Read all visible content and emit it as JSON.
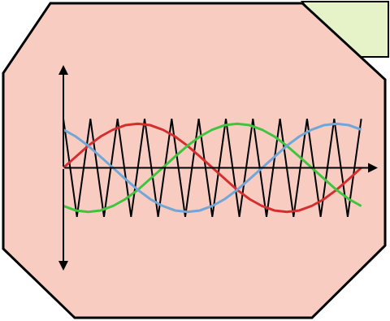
{
  "chart_data": {
    "type": "line",
    "xlim": [
      0,
      380
    ],
    "ylim": [
      -2.1,
      2.1
    ],
    "tick_labels": false,
    "grid": false,
    "series": [
      {
        "color": "#000000",
        "x": [
          0,
          16.4,
          32.7,
          49.1,
          65.5,
          81.8,
          98.2,
          114.5,
          130.9,
          147.3,
          163.6,
          180,
          196.4,
          212.7,
          229.1,
          245.5,
          261.8,
          278.2,
          294.5,
          310.9,
          327.3,
          343.6,
          360
        ],
        "values": [
          1,
          -1,
          1,
          -1,
          1,
          -1,
          1,
          -1,
          1,
          -1,
          1,
          -1,
          1,
          -1,
          1,
          -1,
          1,
          -1,
          1,
          -1,
          1,
          -1,
          1
        ]
      },
      {
        "color": "#d42f2f",
        "x": [
          0,
          15,
          30,
          45,
          60,
          75,
          90,
          105,
          120,
          135,
          150,
          165,
          180,
          195,
          210,
          225,
          240,
          255,
          270,
          285,
          300,
          315,
          330,
          345,
          360
        ],
        "values": [
          0,
          0.23,
          0.45,
          0.64,
          0.78,
          0.87,
          0.9,
          0.87,
          0.78,
          0.64,
          0.45,
          0.23,
          0,
          -0.23,
          -0.45,
          -0.64,
          -0.78,
          -0.87,
          -0.9,
          -0.87,
          -0.78,
          -0.64,
          -0.45,
          -0.23,
          0
        ]
      },
      {
        "color": "#3fc43f",
        "x": [
          0,
          15,
          30,
          45,
          60,
          75,
          90,
          105,
          120,
          135,
          150,
          165,
          180,
          195,
          210,
          225,
          240,
          255,
          270,
          285,
          300,
          315,
          330,
          345,
          360
        ],
        "values": [
          -0.78,
          -0.87,
          -0.9,
          -0.87,
          -0.78,
          -0.64,
          -0.45,
          -0.23,
          0,
          0.23,
          0.45,
          0.64,
          0.78,
          0.87,
          0.9,
          0.87,
          0.78,
          0.64,
          0.45,
          0.23,
          0,
          -0.23,
          -0.45,
          -0.64,
          -0.78
        ]
      },
      {
        "color": "#70a6d8",
        "x": [
          0,
          15,
          30,
          45,
          60,
          75,
          90,
          105,
          120,
          135,
          150,
          165,
          180,
          195,
          210,
          225,
          240,
          255,
          270,
          285,
          300,
          315,
          330,
          345,
          360
        ],
        "values": [
          0.78,
          0.64,
          0.45,
          0.23,
          0,
          -0.23,
          -0.45,
          -0.64,
          -0.78,
          -0.87,
          -0.9,
          -0.87,
          -0.78,
          -0.64,
          -0.45,
          -0.23,
          0,
          0.23,
          0.45,
          0.64,
          0.78,
          0.87,
          0.9,
          0.87,
          0.78
        ]
      }
    ]
  }
}
